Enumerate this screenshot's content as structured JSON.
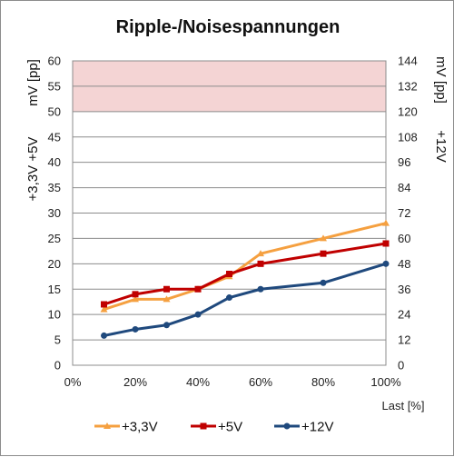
{
  "chart_data": {
    "type": "line",
    "title": "Ripple-/Noisespannungen",
    "xlabel": "Last [%]",
    "ylabel_left_1": "mV [pp]",
    "ylabel_left_2": "+3,3V +5V",
    "ylabel_right_1": "mV [pp]",
    "ylabel_right_2": "+12V",
    "x_ticks": [
      "0%",
      "20%",
      "40%",
      "60%",
      "80%",
      "100%"
    ],
    "xlim": [
      0,
      100
    ],
    "ylim_left": [
      0,
      60
    ],
    "y_ticks_left": [
      "0",
      "5",
      "10",
      "15",
      "20",
      "25",
      "30",
      "35",
      "40",
      "45",
      "50",
      "55",
      "60"
    ],
    "ylim_right": [
      0,
      144
    ],
    "y_ticks_right": [
      "0",
      "12",
      "24",
      "36",
      "48",
      "60",
      "72",
      "84",
      "96",
      "108",
      "120",
      "132",
      "144"
    ],
    "limit_band_left": [
      50,
      60
    ],
    "limit_band_color": "#f4d4d4",
    "grid": true,
    "legend_position": "bottom",
    "series": [
      {
        "name": "+3,3V",
        "axis": "left",
        "color": "#f5a040",
        "marker": "triangle",
        "x": [
          10,
          20,
          30,
          40,
          50,
          60,
          80,
          100
        ],
        "y": [
          11,
          13,
          13,
          15,
          17.5,
          22,
          25,
          28
        ]
      },
      {
        "name": "+5V",
        "axis": "left",
        "color": "#c00000",
        "marker": "square",
        "x": [
          10,
          20,
          30,
          40,
          50,
          60,
          80,
          100
        ],
        "y": [
          12,
          14,
          15,
          15,
          18,
          20,
          22,
          24
        ]
      },
      {
        "name": "+12V",
        "axis": "right",
        "color": "#1f497d",
        "marker": "circle",
        "x": [
          10,
          20,
          30,
          40,
          50,
          60,
          80,
          100
        ],
        "y": [
          14,
          17,
          19,
          24,
          32,
          36,
          39,
          48
        ]
      }
    ]
  }
}
